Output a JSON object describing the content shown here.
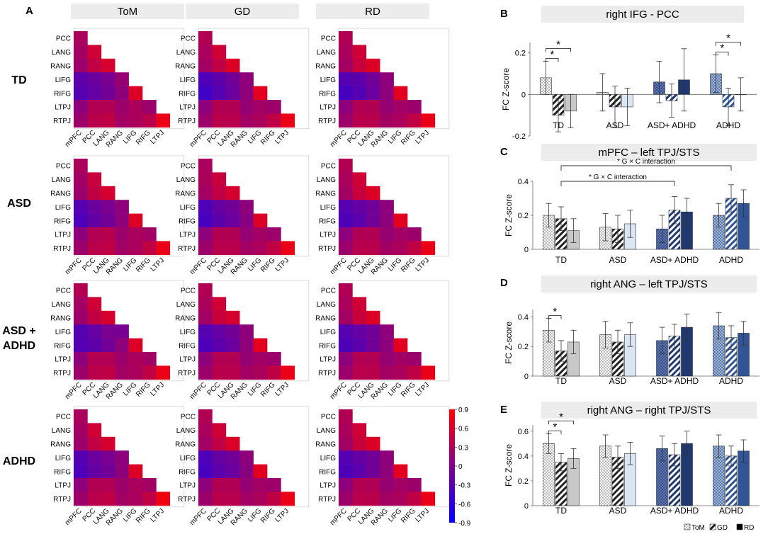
{
  "figure": {
    "panel_letters": [
      "A",
      "B",
      "C",
      "D",
      "E"
    ],
    "fc_ylabel": "FC Z-score",
    "legend": [
      {
        "label": "ToM",
        "pattern": "dots"
      },
      {
        "label": "GD",
        "pattern": "hatch"
      },
      {
        "label": "RD",
        "pattern": "solid"
      }
    ]
  },
  "colors": {
    "scale_low": "#0000ff",
    "scale_mid": "#80008a",
    "scale_high": "#ff0000",
    "group_TD": "#c8c8c8",
    "group_ASD": "#dbe6f4",
    "group_ASD_ADHD": "#1f3870",
    "group_ADHD": "#2f5597",
    "title_band": "#ececec"
  },
  "chart_data": [
    {
      "type": "heatmap",
      "panel": "A",
      "columns": [
        "ToM",
        "GD",
        "RD"
      ],
      "groups": [
        "TD",
        "ASD",
        "ASD + ADHD",
        "ADHD"
      ],
      "row_labels": [
        "PCC",
        "LANG",
        "RANG",
        "LIFG",
        "RIFG",
        "LTPJ",
        "RTPJ"
      ],
      "col_labels": [
        "mPFC",
        "PCC",
        "LANG",
        "RANG",
        "LIFG",
        "RIFG",
        "LTPJ"
      ],
      "colorbar": {
        "min": -0.9,
        "max": 0.9,
        "ticks": [
          "0.9",
          "0.6",
          "0.3",
          "0",
          "-0.3",
          "-0.6",
          "-0.9"
        ]
      },
      "matrices": {
        "TD": {
          "ToM": [
            [
              0.3
            ],
            [
              0.25,
              0.55
            ],
            [
              0.2,
              0.45,
              0.6
            ],
            [
              -0.25,
              -0.15,
              -0.05,
              0.15
            ],
            [
              -0.3,
              -0.2,
              -0.1,
              0.1,
              0.65
            ],
            [
              0.1,
              0.35,
              0.35,
              0.2,
              0.3,
              0.2
            ],
            [
              0.2,
              0.4,
              0.45,
              0.25,
              0.3,
              0.4,
              0.75
            ]
          ],
          "GD": [
            [
              0.35
            ],
            [
              0.3,
              0.55
            ],
            [
              0.25,
              0.45,
              0.65
            ],
            [
              -0.35,
              -0.25,
              -0.1,
              0.1
            ],
            [
              -0.45,
              -0.3,
              -0.15,
              0.1,
              0.7
            ],
            [
              0.1,
              0.35,
              0.35,
              0.15,
              0.25,
              0.2
            ],
            [
              0.2,
              0.4,
              0.4,
              0.25,
              0.3,
              0.45,
              0.75
            ]
          ],
          "RD": [
            [
              0.35
            ],
            [
              0.3,
              0.55
            ],
            [
              0.25,
              0.5,
              0.65
            ],
            [
              -0.3,
              -0.25,
              -0.1,
              0.1
            ],
            [
              -0.4,
              -0.3,
              -0.15,
              0.1,
              0.7
            ],
            [
              0.1,
              0.35,
              0.35,
              0.15,
              0.25,
              0.2
            ],
            [
              0.2,
              0.4,
              0.4,
              0.25,
              0.3,
              0.45,
              0.75
            ]
          ]
        },
        "ASD": {
          "ToM": [
            [
              0.3
            ],
            [
              0.25,
              0.5
            ],
            [
              0.2,
              0.45,
              0.6
            ],
            [
              -0.3,
              -0.15,
              -0.05,
              0.1
            ],
            [
              -0.35,
              -0.2,
              -0.1,
              0.1,
              0.65
            ],
            [
              0.1,
              0.35,
              0.4,
              0.2,
              0.3,
              0.25
            ],
            [
              0.2,
              0.4,
              0.45,
              0.25,
              0.3,
              0.45,
              0.75
            ]
          ],
          "GD": [
            [
              0.3
            ],
            [
              0.3,
              0.5
            ],
            [
              0.25,
              0.45,
              0.6
            ],
            [
              -0.35,
              -0.2,
              -0.1,
              0.1
            ],
            [
              -0.4,
              -0.25,
              -0.15,
              0.05,
              0.65
            ],
            [
              0.1,
              0.35,
              0.35,
              0.15,
              0.25,
              0.2
            ],
            [
              0.2,
              0.4,
              0.4,
              0.25,
              0.3,
              0.45,
              0.75
            ]
          ],
          "RD": [
            [
              0.35
            ],
            [
              0.3,
              0.55
            ],
            [
              0.25,
              0.5,
              0.65
            ],
            [
              -0.3,
              -0.2,
              -0.1,
              0.1
            ],
            [
              -0.35,
              -0.25,
              -0.1,
              0.1,
              0.7
            ],
            [
              0.1,
              0.35,
              0.35,
              0.15,
              0.25,
              0.2
            ],
            [
              0.2,
              0.4,
              0.4,
              0.25,
              0.3,
              0.45,
              0.75
            ]
          ]
        },
        "ASD + ADHD": {
          "ToM": [
            [
              0.35
            ],
            [
              0.25,
              0.55
            ],
            [
              0.2,
              0.45,
              0.6
            ],
            [
              -0.3,
              -0.2,
              -0.05,
              -0.05
            ],
            [
              -0.3,
              -0.25,
              -0.1,
              0.1,
              0.65
            ],
            [
              0.1,
              0.35,
              0.35,
              0.2,
              0.3,
              0.25
            ],
            [
              0.2,
              0.4,
              0.45,
              0.25,
              0.3,
              0.45,
              0.75
            ]
          ],
          "GD": [
            [
              0.35
            ],
            [
              0.3,
              0.55
            ],
            [
              0.25,
              0.5,
              0.6
            ],
            [
              -0.3,
              -0.2,
              -0.1,
              0.1
            ],
            [
              -0.35,
              -0.25,
              -0.15,
              0.1,
              0.7
            ],
            [
              0.1,
              0.35,
              0.35,
              0.15,
              0.25,
              0.2
            ],
            [
              0.2,
              0.4,
              0.4,
              0.25,
              0.3,
              0.45,
              0.75
            ]
          ],
          "RD": [
            [
              0.35
            ],
            [
              0.3,
              0.55
            ],
            [
              0.25,
              0.5,
              0.65
            ],
            [
              -0.3,
              -0.2,
              -0.1,
              0.1
            ],
            [
              -0.35,
              -0.25,
              -0.1,
              0.1,
              0.7
            ],
            [
              0.1,
              0.35,
              0.35,
              0.15,
              0.25,
              0.2
            ],
            [
              0.2,
              0.4,
              0.4,
              0.25,
              0.3,
              0.45,
              0.75
            ]
          ]
        },
        "ADHD": {
          "ToM": [
            [
              0.3
            ],
            [
              0.25,
              0.55
            ],
            [
              0.2,
              0.45,
              0.6
            ],
            [
              -0.3,
              -0.15,
              -0.05,
              0.1
            ],
            [
              -0.35,
              -0.2,
              -0.1,
              0.1,
              0.65
            ],
            [
              0.1,
              0.35,
              0.35,
              0.2,
              0.3,
              0.25
            ],
            [
              0.2,
              0.4,
              0.45,
              0.25,
              0.3,
              0.45,
              0.8
            ]
          ],
          "GD": [
            [
              0.35
            ],
            [
              0.3,
              0.55
            ],
            [
              0.25,
              0.45,
              0.65
            ],
            [
              -0.35,
              -0.2,
              -0.1,
              0.1
            ],
            [
              -0.4,
              -0.25,
              -0.15,
              0.05,
              0.7
            ],
            [
              0.1,
              0.35,
              0.35,
              0.15,
              0.25,
              0.2
            ],
            [
              0.2,
              0.4,
              0.4,
              0.25,
              0.3,
              0.45,
              0.75
            ]
          ],
          "RD": [
            [
              0.35
            ],
            [
              0.3,
              0.55
            ],
            [
              0.25,
              0.5,
              0.65
            ],
            [
              -0.3,
              -0.2,
              -0.1,
              0.1
            ],
            [
              -0.35,
              -0.25,
              -0.1,
              0.1,
              0.7
            ],
            [
              0.1,
              0.35,
              0.35,
              0.15,
              0.25,
              0.2
            ],
            [
              0.2,
              0.4,
              0.4,
              0.25,
              0.3,
              0.45,
              0.75
            ]
          ]
        }
      }
    },
    {
      "type": "bar",
      "panel": "B",
      "title": "right IFG - PCC",
      "ylabel": "FC Z-score",
      "ylim": [
        -0.2,
        0.25
      ],
      "yticks": [
        -0.2,
        0,
        0.2
      ],
      "ytick_labels": [
        "-0.2",
        "0",
        "0.2"
      ],
      "categories": [
        "TD",
        "ASD",
        "ASD+ ADHD",
        "ADHD"
      ],
      "series": [
        {
          "name": "ToM",
          "values": [
            0.08,
            0.01,
            0.06,
            0.1
          ],
          "errors": [
            0.08,
            0.09,
            0.1,
            0.09
          ]
        },
        {
          "name": "GD",
          "values": [
            -0.1,
            -0.06,
            -0.03,
            -0.06
          ],
          "errors": [
            0.08,
            0.1,
            0.08,
            0.09
          ]
        },
        {
          "name": "RD",
          "values": [
            -0.08,
            -0.06,
            0.07,
            0.0
          ],
          "errors": [
            0.08,
            0.09,
            0.15,
            0.08
          ]
        }
      ],
      "significance": [
        {
          "category": "TD",
          "from": 0,
          "to": 1,
          "label": "*"
        },
        {
          "category": "TD",
          "from": 0,
          "to": 2,
          "label": "*"
        },
        {
          "category": "ADHD",
          "from": 0,
          "to": 1,
          "label": "*"
        },
        {
          "category": "ADHD",
          "from": 0,
          "to": 2,
          "label": "*"
        }
      ]
    },
    {
      "type": "bar",
      "panel": "C",
      "title": "mPFC – left TPJ/STS",
      "ylabel": "FC Z-score",
      "ylim": [
        0,
        0.4
      ],
      "yticks": [
        0,
        0.2,
        0.4
      ],
      "ytick_labels": [
        "0",
        "0.2",
        "0.4"
      ],
      "categories": [
        "TD",
        "ASD",
        "ASD+ ADHD",
        "ADHD"
      ],
      "series": [
        {
          "name": "ToM",
          "values": [
            0.2,
            0.13,
            0.12,
            0.2
          ],
          "errors": [
            0.07,
            0.08,
            0.08,
            0.07
          ]
        },
        {
          "name": "GD",
          "values": [
            0.18,
            0.12,
            0.23,
            0.3
          ],
          "errors": [
            0.07,
            0.08,
            0.08,
            0.08
          ]
        },
        {
          "name": "RD",
          "values": [
            0.11,
            0.15,
            0.22,
            0.27
          ],
          "errors": [
            0.07,
            0.08,
            0.08,
            0.08
          ]
        }
      ],
      "annotations": [
        {
          "text": "* G × C interaction",
          "from_category": "TD",
          "to_category": "ADHD"
        },
        {
          "text": "* G × C interaction",
          "from_category": "TD",
          "to_category": "ASD+ ADHD"
        }
      ]
    },
    {
      "type": "bar",
      "panel": "D",
      "title": "right ANG  – left TPJ/STS",
      "ylabel": "FC Z-score",
      "ylim": [
        0,
        0.45
      ],
      "yticks": [
        0,
        0.2,
        0.4
      ],
      "ytick_labels": [
        "0",
        "0.2",
        "0.4"
      ],
      "categories": [
        "TD",
        "ASD",
        "ASD+ ADHD",
        "ADHD"
      ],
      "series": [
        {
          "name": "ToM",
          "values": [
            0.31,
            0.28,
            0.24,
            0.34
          ],
          "errors": [
            0.08,
            0.09,
            0.09,
            0.09
          ]
        },
        {
          "name": "GD",
          "values": [
            0.17,
            0.23,
            0.27,
            0.26
          ],
          "errors": [
            0.07,
            0.08,
            0.08,
            0.08
          ]
        },
        {
          "name": "RD",
          "values": [
            0.23,
            0.28,
            0.33,
            0.29
          ],
          "errors": [
            0.08,
            0.08,
            0.09,
            0.08
          ]
        }
      ],
      "significance": [
        {
          "category": "TD",
          "from": 0,
          "to": 1,
          "label": "*"
        }
      ]
    },
    {
      "type": "bar",
      "panel": "E",
      "title": "right ANG  – right TPJ/STS",
      "ylabel": "FC Z-score",
      "ylim": [
        0,
        0.65
      ],
      "yticks": [
        0,
        0.2,
        0.4,
        0.6
      ],
      "ytick_labels": [
        "0",
        "0.2",
        "0.4",
        "0.6"
      ],
      "categories": [
        "TD",
        "ASD",
        "ASD+ ADHD",
        "ADHD"
      ],
      "series": [
        {
          "name": "ToM",
          "values": [
            0.5,
            0.48,
            0.46,
            0.48
          ],
          "errors": [
            0.08,
            0.09,
            0.1,
            0.09
          ]
        },
        {
          "name": "GD",
          "values": [
            0.35,
            0.39,
            0.41,
            0.4
          ],
          "errors": [
            0.07,
            0.09,
            0.09,
            0.08
          ]
        },
        {
          "name": "RD",
          "values": [
            0.38,
            0.42,
            0.5,
            0.44
          ],
          "errors": [
            0.08,
            0.09,
            0.1,
            0.09
          ]
        }
      ],
      "significance": [
        {
          "category": "TD",
          "from": 0,
          "to": 1,
          "label": "*"
        },
        {
          "category": "TD",
          "from": 0,
          "to": 2,
          "label": "*"
        }
      ]
    }
  ]
}
